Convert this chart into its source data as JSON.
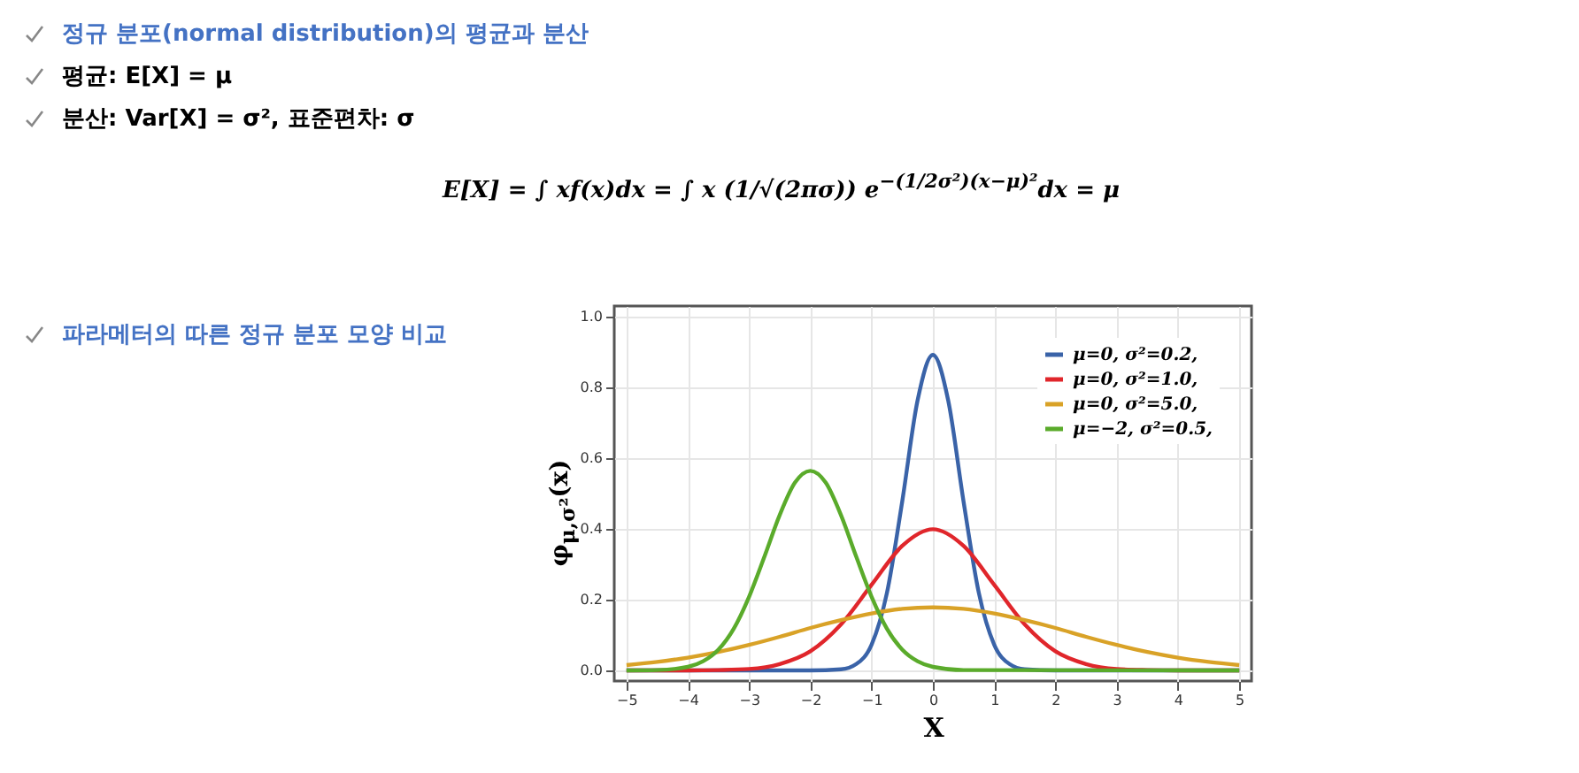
{
  "chart_data": {
    "type": "line",
    "title": "파라메터의 따른 정규 분포 모양 비교",
    "annotations": [
      "정규 분포(normal distribution)의 평균과 분산",
      "평균:  E[X] = μ",
      "분산: Var[X] =  σ², 표준편차: σ",
      "E[X] = ∫ xf(x)dx = ∫ x (1/√(2πσ)) e$^{−(1/2σ²)(x−μ)²}$dx = μ"
    ],
    "xlabel": "X",
    "ylabel": "φ$_{μ,σ²}$(x)",
    "series": [
      {
        "name": "μ=0, σ²=0.2,",
        "color": "#3a63a8",
        "x": [
          -5,
          -2,
          -1.5,
          -1.25,
          -1,
          -0.75,
          -0.5,
          -0.25,
          0,
          0.25,
          0.5,
          0.75,
          1,
          1.25,
          1.5,
          2,
          5
        ],
        "values": [
          0,
          0,
          0.003,
          0.018,
          0.073,
          0.219,
          0.478,
          0.763,
          0.892,
          0.763,
          0.478,
          0.219,
          0.073,
          0.018,
          0.003,
          0,
          0
        ]
      },
      {
        "name": "μ=0, σ²=1.0,",
        "color": "#e0262b",
        "x": [
          -5,
          -4,
          -3.5,
          -3,
          -2.5,
          -2,
          -1.5,
          -1,
          -0.5,
          0,
          0.5,
          1,
          1.5,
          2,
          2.5,
          3,
          3.5,
          4,
          5
        ],
        "values": [
          0,
          0,
          0.001,
          0.004,
          0.018,
          0.054,
          0.13,
          0.242,
          0.352,
          0.399,
          0.352,
          0.242,
          0.13,
          0.054,
          0.018,
          0.004,
          0.001,
          0,
          0
        ]
      },
      {
        "name": "μ=0, σ²=5.0,",
        "color": "#d9a227",
        "x": [
          -5,
          -4.5,
          -4,
          -3.5,
          -3,
          -2.5,
          -2,
          -1.5,
          -1,
          -0.5,
          0,
          0.5,
          1,
          1.5,
          2,
          2.5,
          3,
          3.5,
          4,
          4.5,
          5
        ],
        "values": [
          0.015,
          0.024,
          0.036,
          0.052,
          0.072,
          0.095,
          0.12,
          0.142,
          0.161,
          0.174,
          0.178,
          0.174,
          0.161,
          0.142,
          0.12,
          0.095,
          0.072,
          0.052,
          0.036,
          0.024,
          0.015
        ]
      },
      {
        "name": "μ=−2, σ²=0.5,",
        "color": "#5aab2b",
        "x": [
          -5,
          -4.5,
          -4,
          -3.75,
          -3.5,
          -3.25,
          -3,
          -2.75,
          -2.5,
          -2.25,
          -2,
          -1.75,
          -1.5,
          -1.25,
          -1,
          -0.75,
          -0.5,
          -0.25,
          0,
          0.5,
          5
        ],
        "values": [
          0,
          0.001,
          0.01,
          0.026,
          0.059,
          0.118,
          0.208,
          0.321,
          0.439,
          0.531,
          0.564,
          0.531,
          0.439,
          0.321,
          0.208,
          0.118,
          0.059,
          0.026,
          0.01,
          0.001,
          0
        ]
      }
    ],
    "xlim": [
      -5.2,
      5.2
    ],
    "xticks": [
      -5,
      -4,
      -3,
      -2,
      -1,
      0,
      1,
      2,
      3,
      4,
      5
    ],
    "ylim": [
      -0.03,
      1.03
    ],
    "yticks": [
      {
        "value": 0,
        "label": "0.0"
      },
      {
        "value": 0.2,
        "label": "0.2"
      },
      {
        "value": 0.4,
        "label": "0.4"
      },
      {
        "value": 0.6,
        "label": "0.6"
      },
      {
        "value": 0.8,
        "label": "0.8"
      },
      {
        "value": 1,
        "label": "1.0"
      }
    ],
    "grid": true,
    "legend": "top right"
  }
}
